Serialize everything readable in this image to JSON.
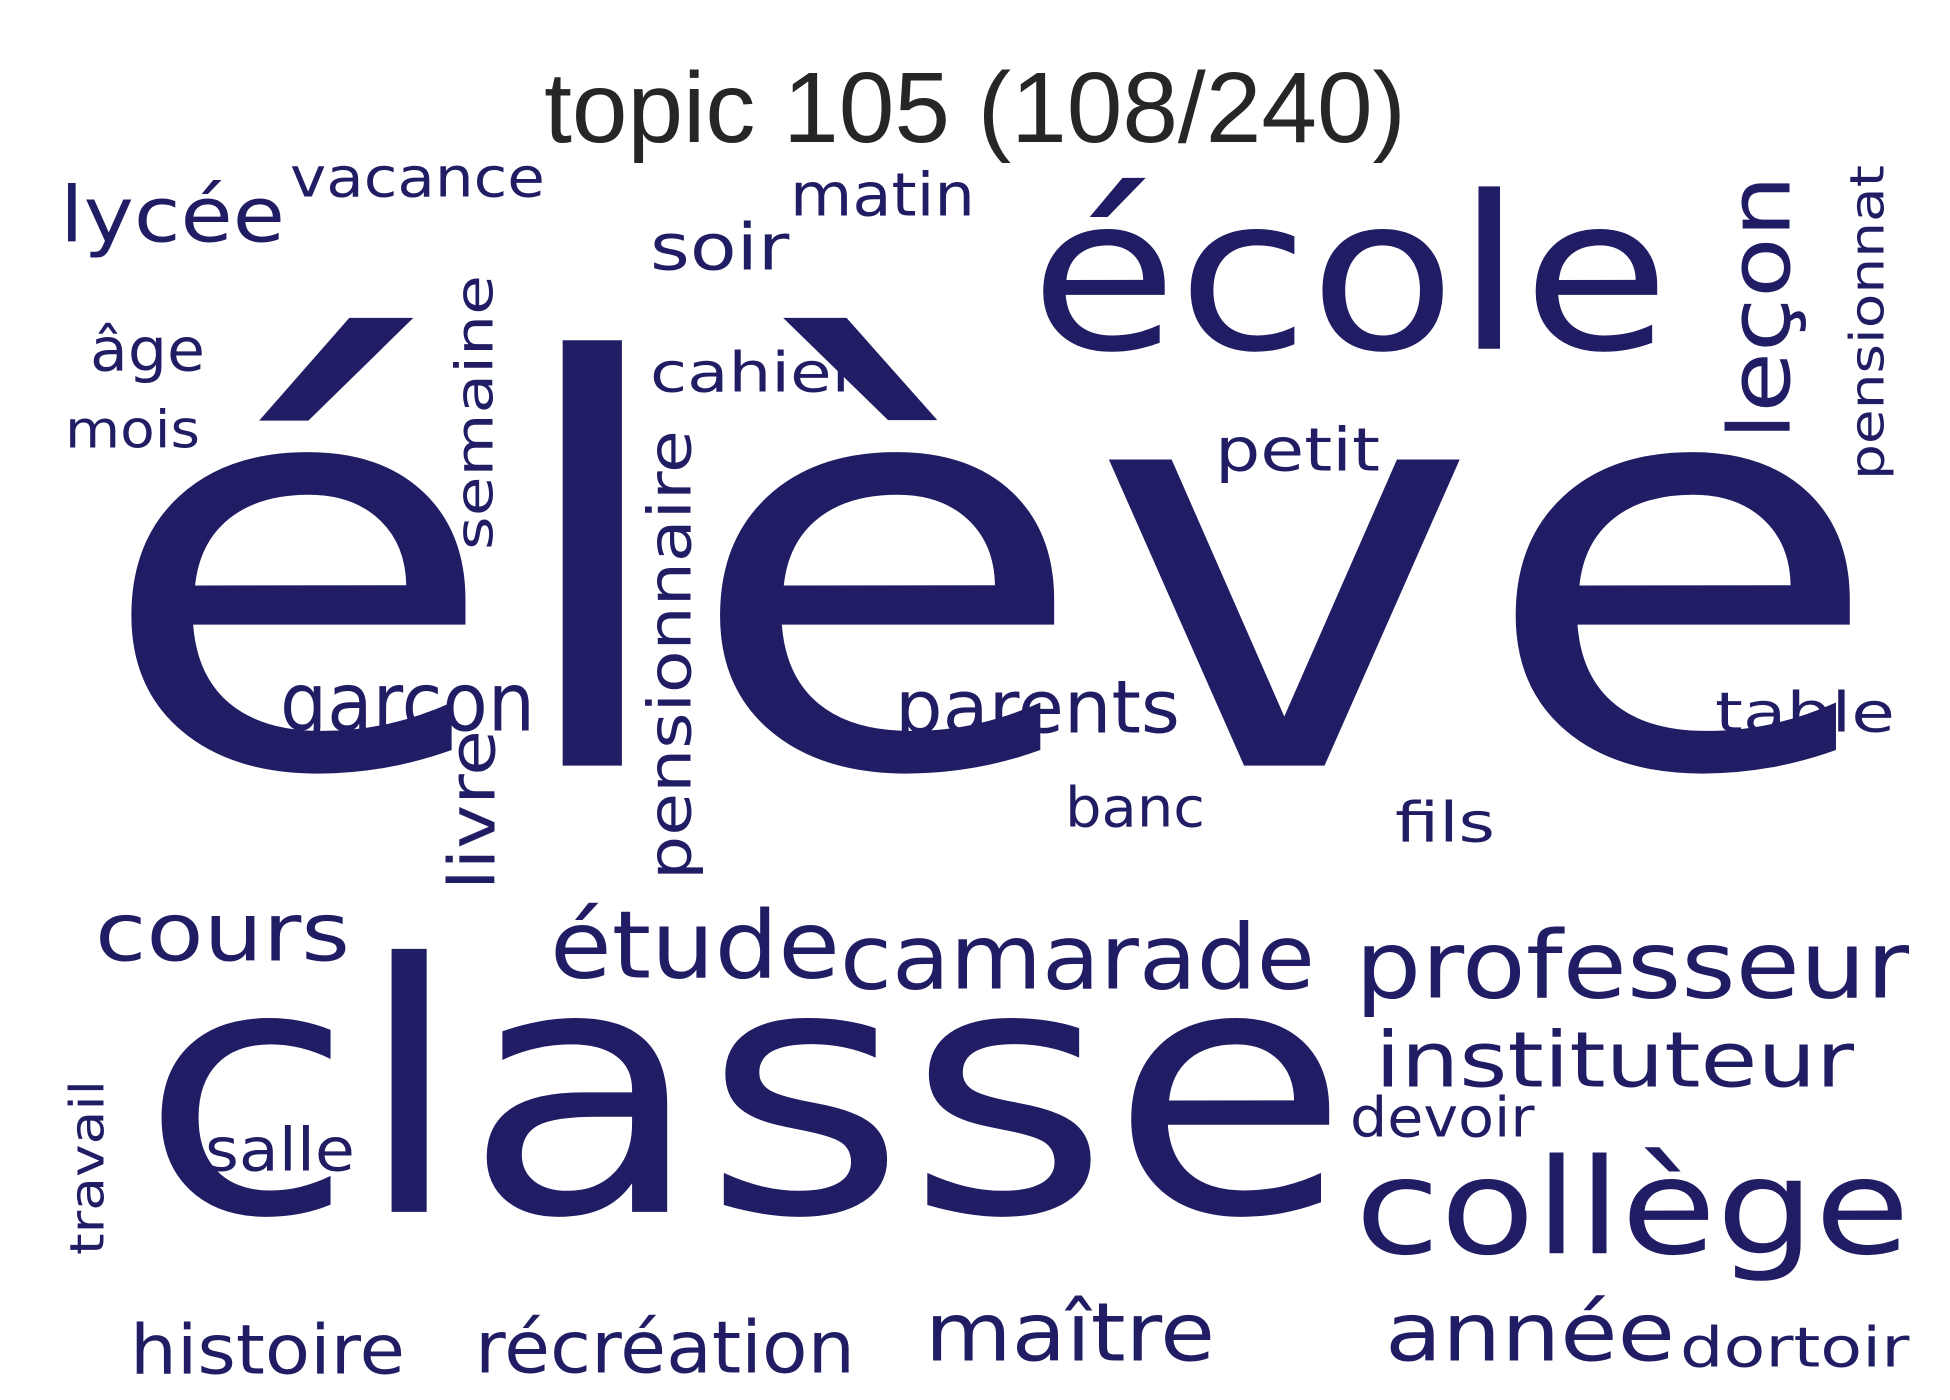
{
  "title": "topic 105 (108/240)",
  "color": "#211d64",
  "words": [
    {
      "text": "élève"
    },
    {
      "text": "classe"
    },
    {
      "text": "école"
    },
    {
      "text": "collège"
    },
    {
      "text": "professeur"
    },
    {
      "text": "camarade"
    },
    {
      "text": "année"
    },
    {
      "text": "instituteur"
    },
    {
      "text": "étude"
    },
    {
      "text": "leçon"
    },
    {
      "text": "maître"
    },
    {
      "text": "cours"
    },
    {
      "text": "récréation"
    },
    {
      "text": "pensionnaire"
    },
    {
      "text": "histoire"
    },
    {
      "text": "garçon"
    },
    {
      "text": "parents"
    },
    {
      "text": "lycée"
    },
    {
      "text": "dortoir"
    },
    {
      "text": "cahier"
    },
    {
      "text": "semaine"
    },
    {
      "text": "table"
    },
    {
      "text": "petit"
    },
    {
      "text": "salle"
    },
    {
      "text": "pensionnat"
    },
    {
      "text": "vacance"
    },
    {
      "text": "soir"
    },
    {
      "text": "matin"
    },
    {
      "text": "livre"
    },
    {
      "text": "travail"
    },
    {
      "text": "fils"
    },
    {
      "text": "devoir"
    },
    {
      "text": "âge"
    },
    {
      "text": "mois"
    },
    {
      "text": "banc"
    }
  ]
}
